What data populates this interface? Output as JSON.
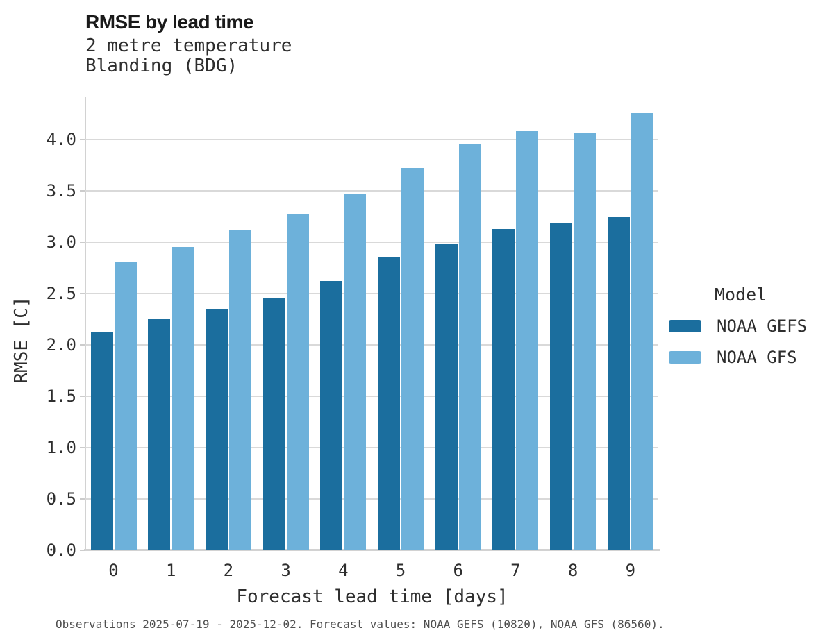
{
  "header": {
    "title": "RMSE by lead time",
    "subtitle_line1": "2 metre temperature",
    "subtitle_line2": "Blanding (BDG)"
  },
  "legend": {
    "title": "Model",
    "items": [
      {
        "label": "NOAA GEFS",
        "color": "#1b6e9e"
      },
      {
        "label": "NOAA GFS",
        "color": "#6db1da"
      }
    ]
  },
  "footer": {
    "caption": "Observations 2025-07-19 - 2025-12-02. Forecast values: NOAA GEFS (10820), NOAA GFS (86560)."
  },
  "chart_data": {
    "type": "bar",
    "title": "RMSE by lead time",
    "subtitle": [
      "2 metre temperature",
      "Blanding (BDG)"
    ],
    "xlabel": "Forecast lead time [days]",
    "ylabel": "RMSE [C]",
    "categories": [
      "0",
      "1",
      "2",
      "3",
      "4",
      "5",
      "6",
      "7",
      "8",
      "9"
    ],
    "series": [
      {
        "name": "NOAA GEFS",
        "color": "#1b6e9e",
        "values": [
          2.13,
          2.26,
          2.35,
          2.46,
          2.62,
          2.85,
          2.98,
          3.13,
          3.18,
          3.25
        ]
      },
      {
        "name": "NOAA GFS",
        "color": "#6db1da",
        "values": [
          2.81,
          2.95,
          3.12,
          3.28,
          3.47,
          3.72,
          3.95,
          4.08,
          4.07,
          4.26
        ]
      }
    ],
    "ylim": [
      0.0,
      4.43
    ],
    "yticks": [
      "0.0",
      "0.5",
      "1.0",
      "1.5",
      "2.0",
      "2.5",
      "3.0",
      "3.5",
      "4.0"
    ],
    "grid": true,
    "grid_color": "#d9d9d9",
    "axis_color": "#d2d2d2",
    "legend_position": "right"
  }
}
